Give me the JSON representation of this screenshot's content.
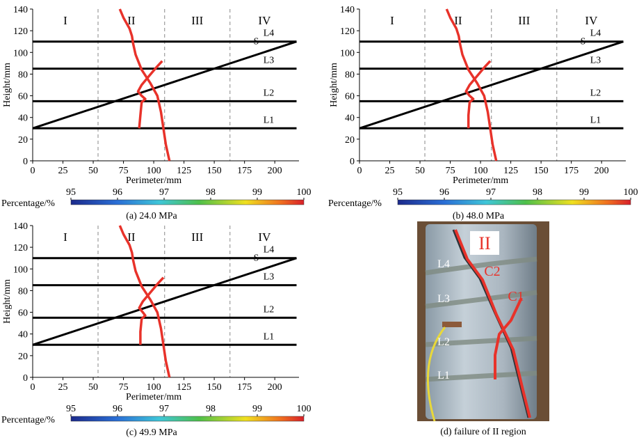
{
  "chart_data": [
    {
      "type": "line",
      "xlabel": "Perimeter/mm",
      "ylabel": "Height/mm",
      "caption": "(a) 24.0 MPa",
      "xlim": [
        0,
        220
      ],
      "xticks": [
        0,
        25,
        50,
        75,
        100,
        125,
        150,
        175,
        200
      ],
      "ylim": [
        0,
        140
      ],
      "yticks": [
        0,
        20,
        40,
        60,
        80,
        100,
        120,
        140
      ],
      "region_bounds": [
        54,
        109,
        163
      ],
      "regions": [
        "I",
        "II",
        "III",
        "IV"
      ],
      "series": [
        {
          "name": "L1",
          "color": "#000000",
          "x": [
            0,
            218
          ],
          "values": [
            30,
            30
          ]
        },
        {
          "name": "L2",
          "color": "#000000",
          "x": [
            0,
            218
          ],
          "values": [
            55,
            55
          ]
        },
        {
          "name": "L3",
          "color": "#000000",
          "x": [
            0,
            218
          ],
          "values": [
            85,
            85
          ]
        },
        {
          "name": "L4",
          "color": "#000000",
          "x": [
            0,
            218
          ],
          "values": [
            110,
            110
          ]
        },
        {
          "name": "S",
          "color": "#000000",
          "x": [
            0,
            218
          ],
          "values": [
            30,
            110
          ]
        },
        {
          "color": "#e8322a",
          "x": [
            72,
            75,
            80,
            82,
            83,
            85,
            90,
            97,
            103,
            106,
            108,
            110,
            113
          ],
          "values": [
            140,
            132,
            122,
            115,
            108,
            98,
            84,
            72,
            60,
            45,
            30,
            15,
            0
          ]
        },
        {
          "color": "#e8322a",
          "x": [
            107,
            102,
            96,
            90,
            87,
            90,
            93,
            90,
            89,
            88
          ],
          "values": [
            92,
            86,
            78,
            70,
            64,
            60,
            57,
            54,
            42,
            30
          ]
        }
      ],
      "colorbar": {
        "label": "Percentage/%",
        "lim": [
          95,
          100
        ],
        "ticks": [
          95,
          96,
          97,
          98,
          99,
          100
        ]
      }
    },
    {
      "type": "line",
      "xlabel": "Perimeter/mm",
      "ylabel": "Height/mm",
      "caption": "(b) 48.0 MPa",
      "xlim": [
        0,
        220
      ],
      "xticks": [
        0,
        25,
        50,
        75,
        100,
        125,
        150,
        175,
        200
      ],
      "ylim": [
        0,
        140
      ],
      "yticks": [
        0,
        20,
        40,
        60,
        80,
        100,
        120,
        140
      ],
      "region_bounds": [
        54,
        109,
        163
      ],
      "regions": [
        "I",
        "II",
        "III",
        "IV"
      ],
      "series": [
        {
          "name": "L1",
          "color": "#000000",
          "x": [
            0,
            218
          ],
          "values": [
            30,
            30
          ]
        },
        {
          "name": "L2",
          "color": "#000000",
          "x": [
            0,
            218
          ],
          "values": [
            55,
            55
          ]
        },
        {
          "name": "L3",
          "color": "#000000",
          "x": [
            0,
            218
          ],
          "values": [
            85,
            85
          ]
        },
        {
          "name": "L4",
          "color": "#000000",
          "x": [
            0,
            218
          ],
          "values": [
            110,
            110
          ]
        },
        {
          "name": "S",
          "color": "#000000",
          "x": [
            0,
            218
          ],
          "values": [
            30,
            110
          ]
        },
        {
          "color": "#e8322a",
          "x": [
            72,
            75,
            80,
            82,
            83,
            85,
            90,
            97,
            103,
            106,
            108,
            110,
            113
          ],
          "values": [
            140,
            132,
            122,
            115,
            108,
            98,
            84,
            72,
            60,
            45,
            30,
            15,
            0
          ]
        },
        {
          "color": "#e8322a",
          "x": [
            108,
            103,
            97,
            91,
            88,
            91,
            94,
            91,
            90,
            90
          ],
          "values": [
            92,
            86,
            78,
            70,
            64,
            60,
            57,
            54,
            42,
            30
          ]
        }
      ],
      "colorbar": {
        "label": "Percentage/%",
        "lim": [
          95,
          100
        ],
        "ticks": [
          95,
          96,
          97,
          98,
          99,
          100
        ]
      }
    },
    {
      "type": "line",
      "xlabel": "Perimeter/mm",
      "ylabel": "Height/mm",
      "caption": "(c) 49.9 MPa",
      "xlim": [
        0,
        220
      ],
      "xticks": [
        0,
        25,
        50,
        75,
        100,
        125,
        150,
        175,
        200
      ],
      "ylim": [
        0,
        140
      ],
      "yticks": [
        0,
        20,
        40,
        60,
        80,
        100,
        120,
        140
      ],
      "region_bounds": [
        54,
        109,
        163
      ],
      "regions": [
        "I",
        "II",
        "III",
        "IV"
      ],
      "series": [
        {
          "name": "L1",
          "color": "#000000",
          "x": [
            0,
            218
          ],
          "values": [
            30,
            30
          ]
        },
        {
          "name": "L2",
          "color": "#000000",
          "x": [
            0,
            218
          ],
          "values": [
            55,
            55
          ]
        },
        {
          "name": "L3",
          "color": "#000000",
          "x": [
            0,
            218
          ],
          "values": [
            85,
            85
          ]
        },
        {
          "name": "L4",
          "color": "#000000",
          "x": [
            0,
            218
          ],
          "values": [
            110,
            110
          ]
        },
        {
          "name": "S",
          "color": "#000000",
          "x": [
            0,
            218
          ],
          "values": [
            30,
            110
          ]
        },
        {
          "color": "#e8322a",
          "x": [
            72,
            75,
            80,
            82,
            83,
            85,
            90,
            97,
            103,
            106,
            108,
            110,
            113
          ],
          "values": [
            140,
            132,
            122,
            115,
            108,
            98,
            84,
            72,
            60,
            45,
            30,
            15,
            0
          ]
        },
        {
          "color": "#e8322a",
          "x": [
            108,
            103,
            97,
            91,
            88,
            91,
            93,
            90,
            89,
            89
          ],
          "values": [
            92,
            86,
            78,
            70,
            64,
            60,
            57,
            54,
            42,
            30
          ]
        }
      ],
      "colorbar": {
        "label": "Percentage/%",
        "lim": [
          95,
          100
        ],
        "ticks": [
          95,
          96,
          97,
          98,
          99,
          100
        ]
      }
    }
  ],
  "photo": {
    "labels": [
      "II",
      "C2",
      "C1",
      "L4",
      "L3",
      "L2",
      "L1"
    ],
    "caption": "(d) failure of II region"
  }
}
